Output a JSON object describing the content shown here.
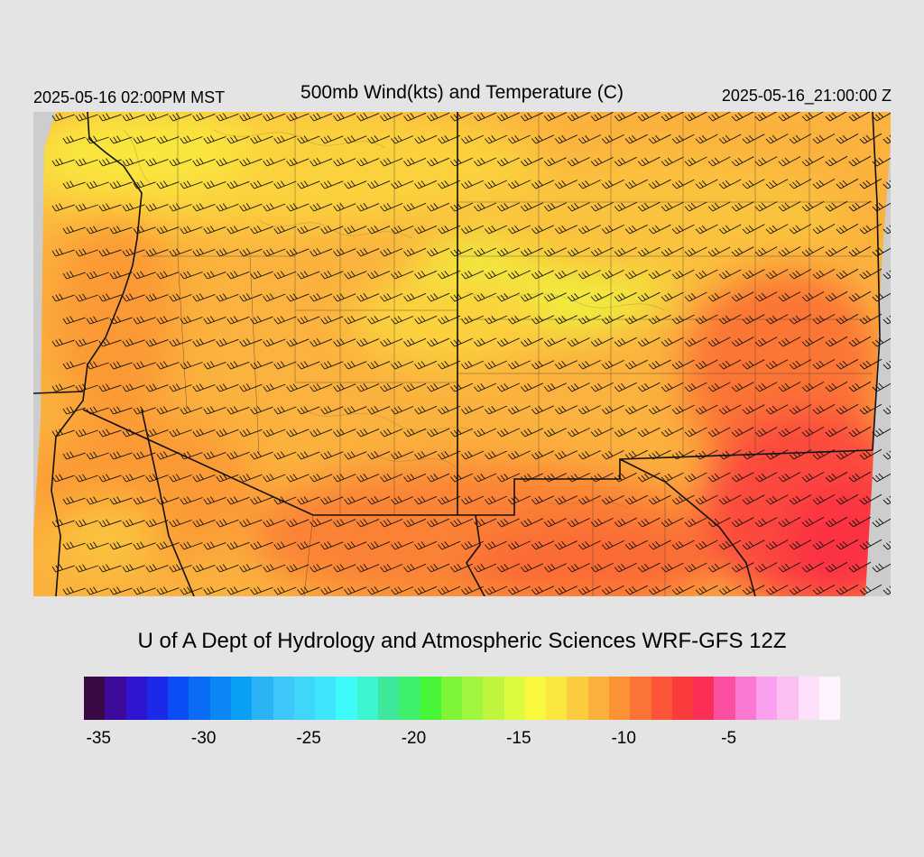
{
  "header": {
    "local_time": "2025-05-16 02:00PM MST",
    "title": "500mb Wind(kts) and Temperature (C)",
    "valid_time": "2025-05-16_21:00:00 Z"
  },
  "credit": "U of A Dept of Hydrology and Atmospheric Sciences WRF-GFS 12Z",
  "colorbar": {
    "colors": [
      "#3b0a45",
      "#3d0a9a",
      "#2f15cf",
      "#1b2ae8",
      "#0a4df5",
      "#0a6cf5",
      "#0a87f5",
      "#0aa0f5",
      "#2ab3f5",
      "#3ec6f8",
      "#3ed6fb",
      "#3ee6fd",
      "#3efaf8",
      "#3ef5d2",
      "#3ee89a",
      "#3ef06a",
      "#48f536",
      "#7ef536",
      "#a0f53e",
      "#c0f53e",
      "#defa3e",
      "#f8f83e",
      "#fae63e",
      "#fbcc3e",
      "#fbb03e",
      "#fb9236",
      "#fb7436",
      "#fb5436",
      "#fb3c3e",
      "#fb2e55",
      "#fb50a0",
      "#fb78d2",
      "#fba0f0",
      "#fbc0f0",
      "#fce0fa",
      "#fdf2fd"
    ],
    "labels": [
      "-35",
      "-30",
      "-25",
      "-20",
      "-15",
      "-10",
      "-5"
    ],
    "label_values": [
      -35,
      -30,
      -25,
      -20,
      -15,
      -10,
      -5
    ],
    "range": [
      -36,
      0
    ]
  },
  "map": {
    "field": "500mb temperature (C)",
    "wind_direction": "westerly to west-southwesterly",
    "temperature_range": [
      -17,
      -7
    ]
  }
}
